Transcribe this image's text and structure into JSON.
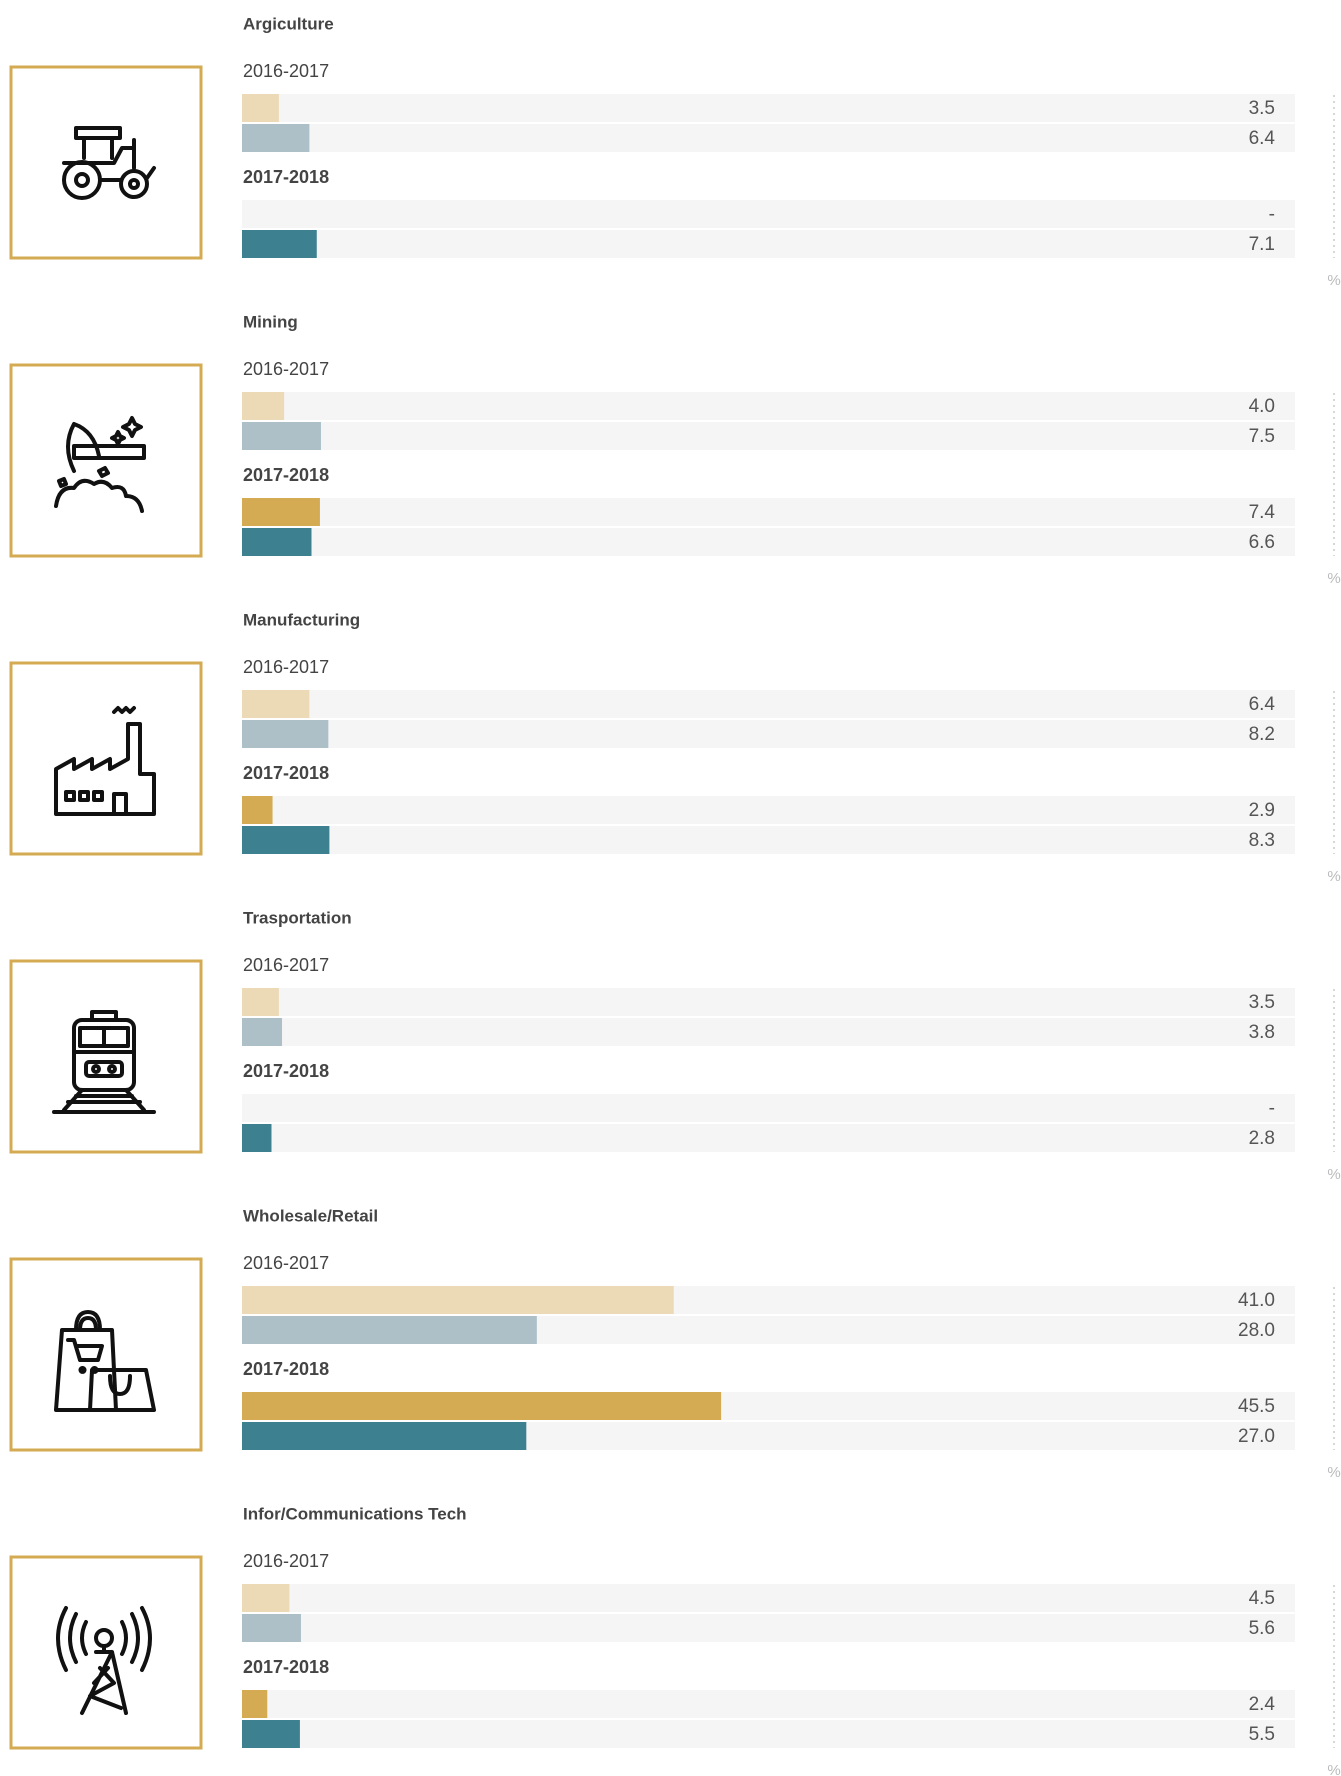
{
  "chart_data": [
    {
      "type": "bar",
      "title": "Argiculture",
      "unit": "%",
      "xlim": [
        0,
        100
      ],
      "groups": [
        {
          "name": "2016-2017",
          "values": [
            3.5,
            6.4
          ],
          "value_labels": [
            "3.5",
            "6.4"
          ],
          "colors": [
            "#ecd9b6",
            "#adc0c8"
          ]
        },
        {
          "name": "2017-2018",
          "values": [
            null,
            7.1
          ],
          "value_labels": [
            "-",
            "7.1"
          ],
          "colors": [
            "#d4ab52",
            "#3d8190"
          ]
        }
      ]
    },
    {
      "type": "bar",
      "title": "Mining",
      "unit": "%",
      "xlim": [
        0,
        100
      ],
      "groups": [
        {
          "name": "2016-2017",
          "values": [
            4.0,
            7.5
          ],
          "value_labels": [
            "4.0",
            "7.5"
          ],
          "colors": [
            "#ecd9b6",
            "#adc0c8"
          ]
        },
        {
          "name": "2017-2018",
          "values": [
            7.4,
            6.6
          ],
          "value_labels": [
            "7.4",
            "6.6"
          ],
          "colors": [
            "#d4ab52",
            "#3d8190"
          ]
        }
      ]
    },
    {
      "type": "bar",
      "title": "Manufacturing",
      "unit": "%",
      "xlim": [
        0,
        100
      ],
      "groups": [
        {
          "name": "2016-2017",
          "values": [
            6.4,
            8.2
          ],
          "value_labels": [
            "6.4",
            "8.2"
          ],
          "colors": [
            "#ecd9b6",
            "#adc0c8"
          ]
        },
        {
          "name": "2017-2018",
          "values": [
            2.9,
            8.3
          ],
          "value_labels": [
            "2.9",
            "8.3"
          ],
          "colors": [
            "#d4ab52",
            "#3d8190"
          ]
        }
      ]
    },
    {
      "type": "bar",
      "title": "Trasportation",
      "unit": "%",
      "xlim": [
        0,
        100
      ],
      "groups": [
        {
          "name": "2016-2017",
          "values": [
            3.5,
            3.8
          ],
          "value_labels": [
            "3.5",
            "3.8"
          ],
          "colors": [
            "#ecd9b6",
            "#adc0c8"
          ]
        },
        {
          "name": "2017-2018",
          "values": [
            null,
            2.8
          ],
          "value_labels": [
            "-",
            "2.8"
          ],
          "colors": [
            "#d4ab52",
            "#3d8190"
          ]
        }
      ]
    },
    {
      "type": "bar",
      "title": "Wholesale/Retail",
      "unit": "%",
      "xlim": [
        0,
        100
      ],
      "groups": [
        {
          "name": "2016-2017",
          "values": [
            41.0,
            28.0
          ],
          "value_labels": [
            "41.0",
            "28.0"
          ],
          "colors": [
            "#ecd9b6",
            "#adc0c8"
          ]
        },
        {
          "name": "2017-2018",
          "values": [
            45.5,
            27.0
          ],
          "value_labels": [
            "45.5",
            "27.0"
          ],
          "colors": [
            "#d4ab52",
            "#3d8190"
          ]
        }
      ]
    },
    {
      "type": "bar",
      "title": "Infor/Communications Tech",
      "unit": "%",
      "xlim": [
        0,
        100
      ],
      "groups": [
        {
          "name": "2016-2017",
          "values": [
            4.5,
            5.6
          ],
          "value_labels": [
            "4.5",
            "5.6"
          ],
          "colors": [
            "#ecd9b6",
            "#adc0c8"
          ]
        },
        {
          "name": "2017-2018",
          "values": [
            2.4,
            5.5
          ],
          "value_labels": [
            "2.4",
            "5.5"
          ],
          "colors": [
            "#d4ab52",
            "#3d8190"
          ]
        }
      ]
    }
  ]
}
